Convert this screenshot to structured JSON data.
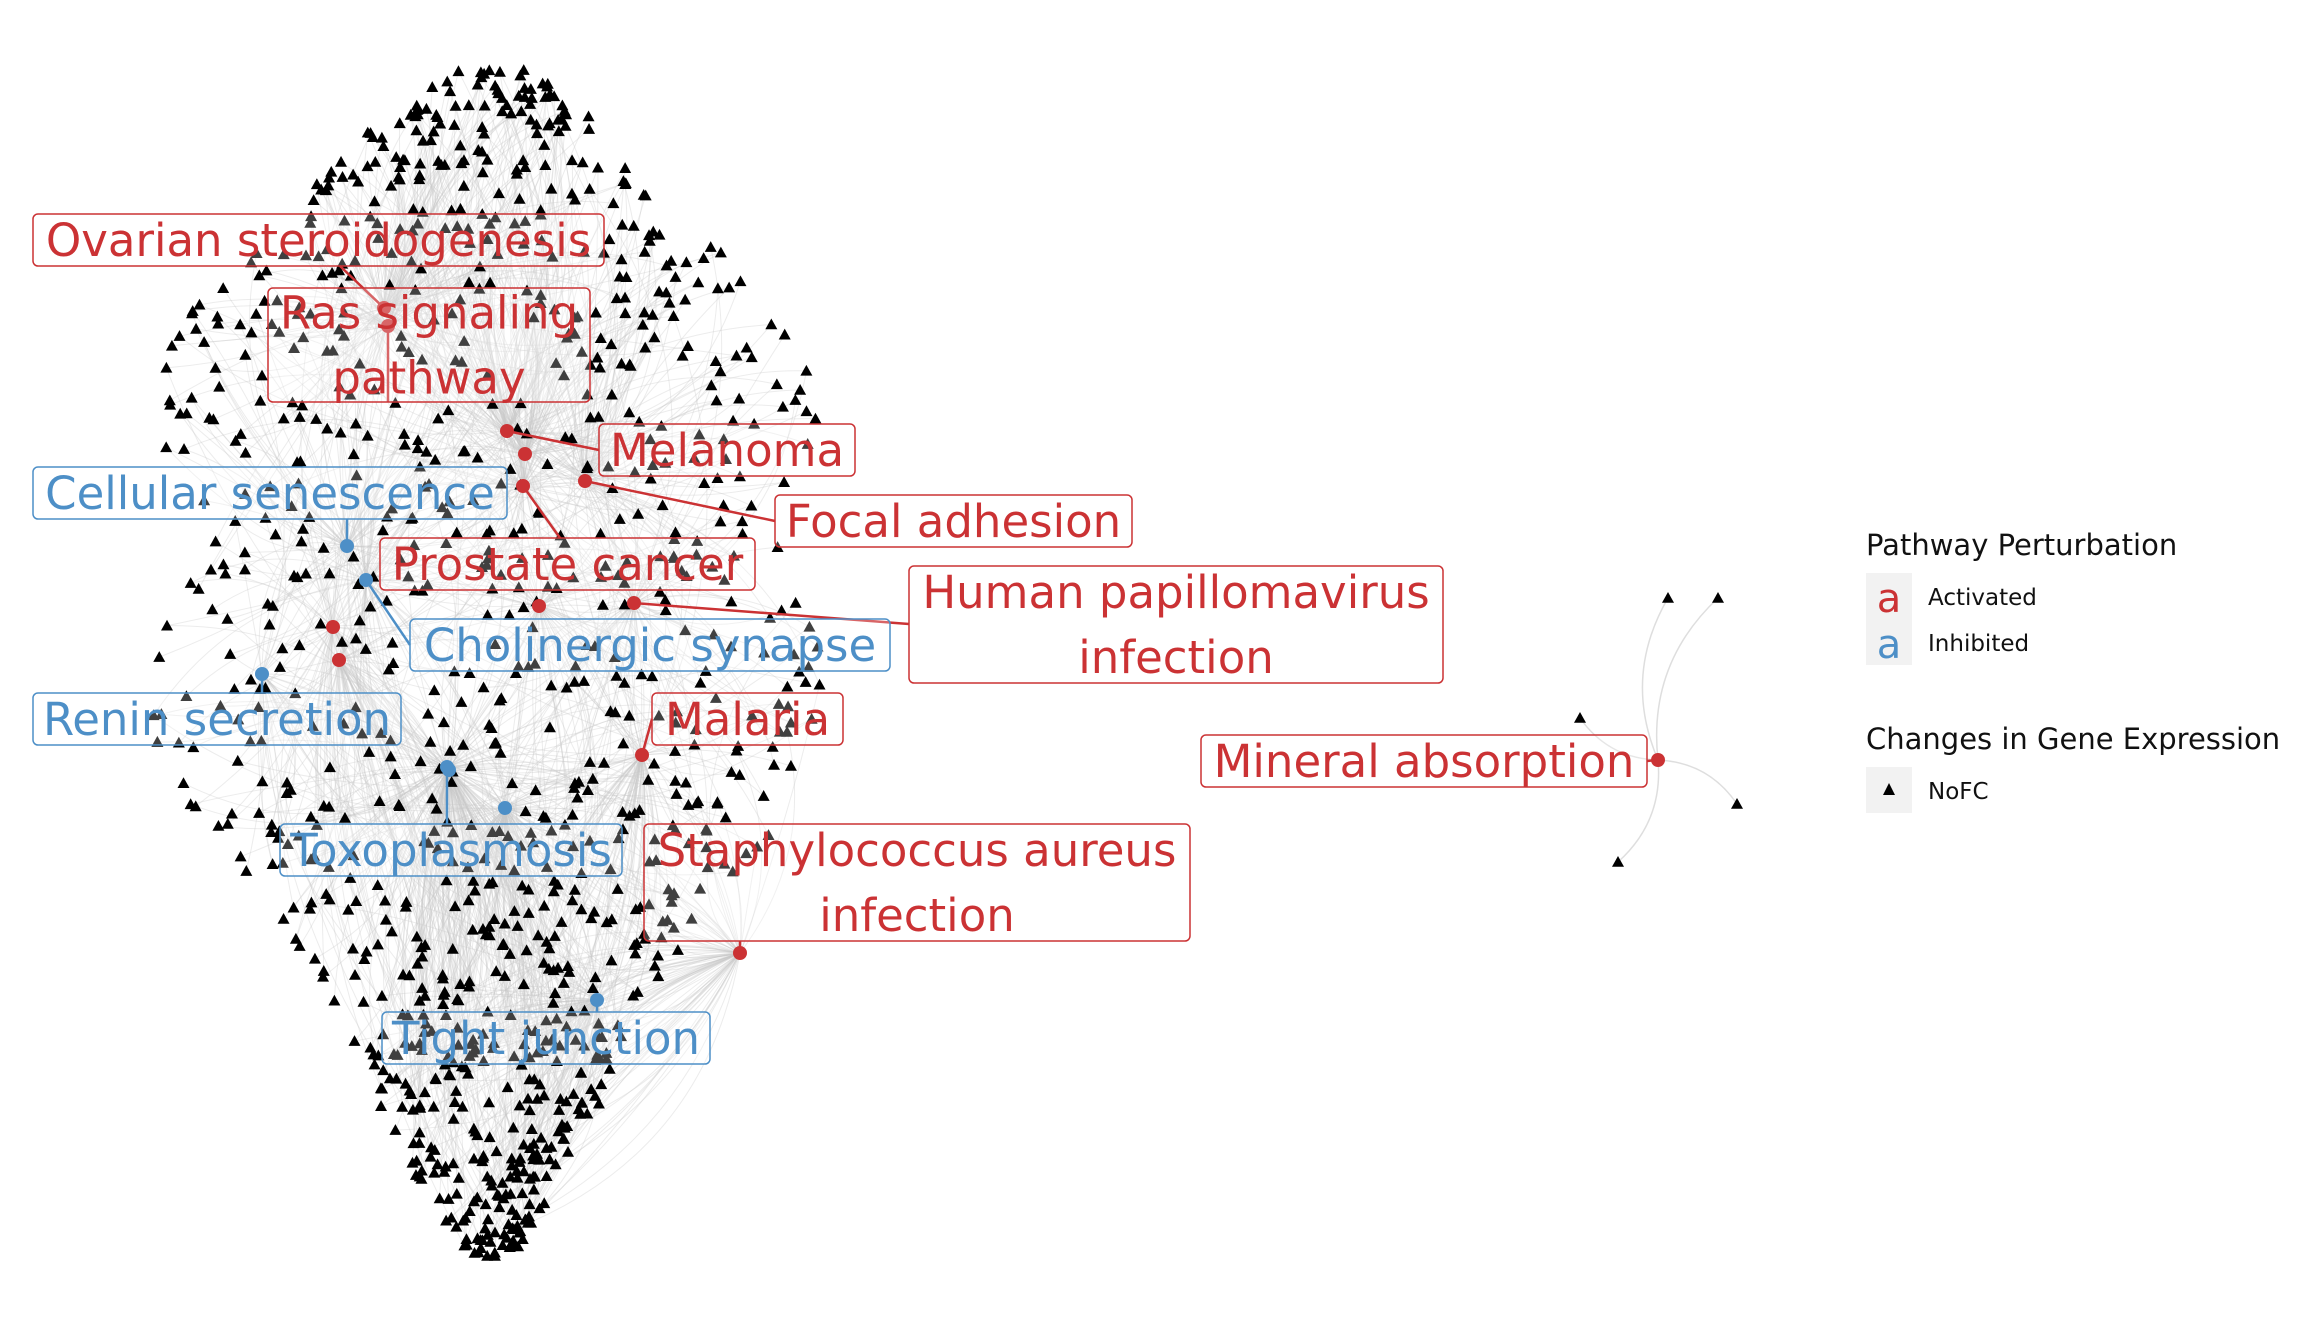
{
  "colors": {
    "activated": "#cb3234",
    "inhibited": "#4d8fc7",
    "gene": "#000000",
    "edge": "#c8c8c8",
    "legend_key_bg": "#f2f2f2"
  },
  "pathways": [
    {
      "id": "ovarian",
      "label_lines": [
        "Ovarian steroidogenesis"
      ],
      "status": "activated"
    },
    {
      "id": "ras",
      "label_lines": [
        "Ras signaling",
        "pathway"
      ],
      "status": "activated"
    },
    {
      "id": "melanoma",
      "label_lines": [
        "Melanoma"
      ],
      "status": "activated"
    },
    {
      "id": "focal",
      "label_lines": [
        "Focal adhesion"
      ],
      "status": "activated"
    },
    {
      "id": "cellsen",
      "label_lines": [
        "Cellular senescence"
      ],
      "status": "inhibited"
    },
    {
      "id": "prostate",
      "label_lines": [
        "Prostate cancer"
      ],
      "status": "activated"
    },
    {
      "id": "hpv",
      "label_lines": [
        "Human papillomavirus",
        "infection"
      ],
      "status": "activated"
    },
    {
      "id": "cholinergic",
      "label_lines": [
        "Cholinergic synapse"
      ],
      "status": "inhibited"
    },
    {
      "id": "renin",
      "label_lines": [
        "Renin secretion"
      ],
      "status": "inhibited"
    },
    {
      "id": "malaria",
      "label_lines": [
        "Malaria"
      ],
      "status": "activated"
    },
    {
      "id": "mineral",
      "label_lines": [
        "Mineral absorption"
      ],
      "status": "activated"
    },
    {
      "id": "toxo",
      "label_lines": [
        "Toxoplasmosis"
      ],
      "status": "inhibited"
    },
    {
      "id": "staph",
      "label_lines": [
        "Staphylococcus aureus",
        "infection"
      ],
      "status": "activated"
    },
    {
      "id": "tight",
      "label_lines": [
        "Tight junction"
      ],
      "status": "inhibited"
    }
  ],
  "legend": {
    "perturbation_title": "Pathway Perturbation",
    "key_glyph": "a",
    "activated_label": "Activated",
    "inhibited_label": "Inhibited",
    "expression_title": "Changes in Gene Expression",
    "nofc_label": "NoFC",
    "nofc_icon": "triangle-icon"
  }
}
